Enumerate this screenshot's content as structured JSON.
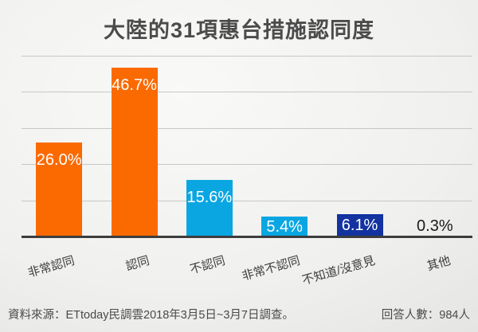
{
  "title": "大陸的31項惠台措施認同度",
  "footer": {
    "source": "資料來源：ETtoday民調雲2018年3月5日~3月7日調查。",
    "respondents": "回答人數：984人"
  },
  "colors": {
    "orange": "#fb6a00",
    "light_blue": "#0aa6e2",
    "dark_blue": "#1233a0",
    "axis": "#3d3d3d",
    "gridline": "#c7c7c5",
    "title_text": "#4b4b4b",
    "footer_text": "#4a4a4a"
  },
  "chart_data": {
    "type": "bar",
    "title": "大陸的31項惠台措施認同度",
    "categories": [
      "非常認同",
      "認同",
      "不認同",
      "非常不認同",
      "不知道/沒意見",
      "其他"
    ],
    "values": [
      26.0,
      46.7,
      15.6,
      5.4,
      6.1,
      0.3
    ],
    "data_labels": [
      "26.0%",
      "46.7%",
      "15.6%",
      "5.4%",
      "6.1%",
      "0.3%"
    ],
    "bar_colors": [
      "#fb6a00",
      "#fb6a00",
      "#0aa6e2",
      "#0aa6e2",
      "#1233a0",
      "#0aa6e2"
    ],
    "xlabel": "",
    "ylabel": "",
    "ylim": [
      0,
      50
    ],
    "gridline_step": 10,
    "grid": "horizontal",
    "legend": "none",
    "y_tick_labels_visible": false,
    "x_label_rotation_deg": -16
  }
}
